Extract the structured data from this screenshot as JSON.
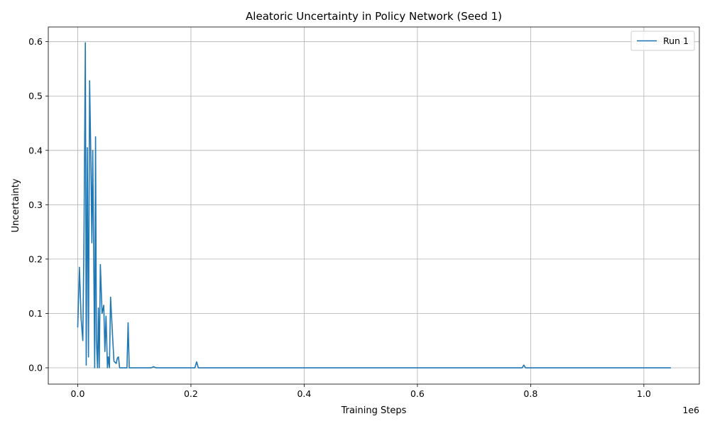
{
  "chart_data": {
    "type": "line",
    "title": "Aleatoric Uncertainty in Policy Network (Seed 1)",
    "xlabel": "Training Steps",
    "ylabel": "Uncertainty",
    "x_offset_text": "1e6",
    "xlim": [
      -0.052,
      1.098
    ],
    "ylim": [
      -0.03,
      0.627
    ],
    "x_scale_factor": 1000000,
    "xticks": [
      0.0,
      0.2,
      0.4,
      0.6,
      0.8,
      1.0
    ],
    "xtick_labels": [
      "0.0",
      "0.2",
      "0.4",
      "0.6",
      "0.8",
      "1.0"
    ],
    "yticks": [
      0.0,
      0.1,
      0.2,
      0.3,
      0.4,
      0.5,
      0.6
    ],
    "ytick_labels": [
      "0.0",
      "0.1",
      "0.2",
      "0.3",
      "0.4",
      "0.5",
      "0.6"
    ],
    "grid": true,
    "legend_position": "top-right",
    "color": "#1f77b4",
    "series": [
      {
        "name": "Run 1",
        "x": [
          0.0,
          0.003,
          0.006,
          0.009,
          0.011,
          0.0135,
          0.015,
          0.017,
          0.019,
          0.021,
          0.023,
          0.025,
          0.0265,
          0.028,
          0.03,
          0.0315,
          0.033,
          0.035,
          0.0365,
          0.038,
          0.04,
          0.043,
          0.046,
          0.048,
          0.05,
          0.0525,
          0.054,
          0.056,
          0.058,
          0.06,
          0.062,
          0.064,
          0.066,
          0.068,
          0.07,
          0.072,
          0.074,
          0.076,
          0.08,
          0.084,
          0.087,
          0.089,
          0.091,
          0.093,
          0.096,
          0.099,
          0.1015,
          0.103,
          0.105,
          0.11,
          0.115,
          0.13,
          0.134,
          0.138,
          0.16,
          0.2,
          0.207,
          0.21,
          0.213,
          0.23,
          0.4,
          0.6,
          0.785,
          0.788,
          0.791,
          0.795,
          0.9,
          1.047
        ],
        "y": [
          0.075,
          0.185,
          0.09,
          0.05,
          0.23,
          0.598,
          0.005,
          0.405,
          0.02,
          0.528,
          0.4,
          0.23,
          0.4,
          0.235,
          0.0,
          0.425,
          0.05,
          0.0,
          0.11,
          0.0,
          0.19,
          0.1,
          0.115,
          0.03,
          0.095,
          0.0,
          0.02,
          0.0,
          0.13,
          0.09,
          0.05,
          0.012,
          0.01,
          0.008,
          0.018,
          0.02,
          0.0,
          0.0,
          0.0,
          0.0,
          0.0,
          0.083,
          0.0,
          0.0,
          0.0,
          0.0,
          0.0,
          0.0,
          0.0,
          0.0,
          0.0,
          0.0,
          0.002,
          0.0,
          0.0,
          0.0,
          0.0,
          0.011,
          0.0,
          0.0,
          0.0,
          0.0,
          0.0,
          0.005,
          0.0,
          0.0,
          0.0,
          0.0
        ]
      }
    ]
  }
}
